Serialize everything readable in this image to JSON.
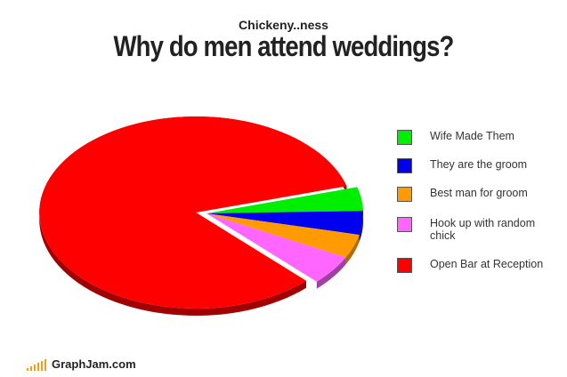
{
  "header": {
    "subtitle": "Chickeny..ness",
    "title": "Why do men attend weddings?"
  },
  "footer": {
    "brand": "GraphJam.com"
  },
  "chart_data": {
    "type": "pie",
    "title": "Why do men attend weddings?",
    "slices": [
      {
        "label": "Wife Made Them",
        "value": 4,
        "color": "#00ee00",
        "dark": "#009a00"
      },
      {
        "label": "They are the groom",
        "value": 4,
        "color": "#0000ee",
        "dark": "#00009a"
      },
      {
        "label": "Best man for groom",
        "value": 4,
        "color": "#ff9a00",
        "dark": "#b36a00"
      },
      {
        "label": "Hook up with random chick",
        "value": 5,
        "color": "#ff66ff",
        "dark": "#a040a0"
      },
      {
        "label": "Open Bar at Reception",
        "value": 83,
        "color": "#ff0000",
        "dark": "#a00000"
      }
    ],
    "exploded": "Open Bar at Reception",
    "legend_position": "right",
    "style": "3d"
  }
}
